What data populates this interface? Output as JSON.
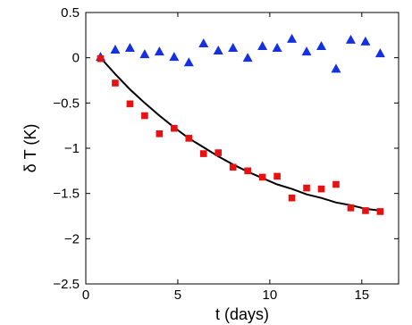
{
  "chart_data": {
    "type": "scatter",
    "xlabel": "t (days)",
    "ylabel": "δ T (K)",
    "xlim": [
      0,
      17
    ],
    "ylim": [
      -2.5,
      0.5
    ],
    "xticks": [
      0,
      5,
      10,
      15
    ],
    "xtick_labels": [
      "0",
      "5",
      "10",
      "15"
    ],
    "yticks": [
      0.5,
      0,
      -0.5,
      -1,
      -1.5,
      -2,
      -2.5
    ],
    "ytick_labels": [
      "0.5",
      "0",
      "−0.5",
      "−1",
      "−1.5",
      "−2",
      "−2.5"
    ],
    "grid": false,
    "series": [
      {
        "marker": "triangle",
        "color": "#1530e0",
        "x": [
          0.8,
          1.6,
          2.4,
          3.2,
          4.0,
          4.8,
          5.6,
          6.4,
          7.2,
          8.0,
          8.8,
          9.6,
          10.4,
          11.2,
          12.0,
          12.8,
          13.6,
          14.4,
          15.2,
          16.0
        ],
        "y": [
          0.01,
          0.09,
          0.11,
          0.04,
          0.07,
          0.01,
          -0.05,
          0.16,
          0.08,
          0.11,
          0.0,
          0.13,
          0.11,
          0.21,
          0.07,
          0.13,
          -0.12,
          0.2,
          0.18,
          0.05
        ]
      },
      {
        "marker": "square",
        "color": "#e81010",
        "x": [
          0.8,
          1.6,
          2.4,
          3.2,
          4.0,
          4.8,
          5.6,
          6.4,
          7.2,
          8.0,
          8.8,
          9.6,
          10.4,
          11.2,
          12.0,
          12.8,
          13.6,
          14.4,
          15.2,
          16.0
        ],
        "y": [
          -0.01,
          -0.28,
          -0.51,
          -0.64,
          -0.84,
          -0.78,
          -0.89,
          -1.06,
          -1.05,
          -1.21,
          -1.25,
          -1.32,
          -1.31,
          -1.55,
          -1.44,
          -1.45,
          -1.4,
          -1.66,
          -1.69,
          -1.7
        ]
      }
    ],
    "fit_curve": {
      "color": "#000000",
      "x": [
        0.8,
        1.6,
        2.4,
        3.2,
        4.0,
        4.8,
        5.6,
        6.4,
        7.2,
        8.0,
        8.8,
        9.6,
        10.4,
        11.2,
        12.0,
        12.8,
        13.6,
        14.4,
        15.2,
        16.0
      ],
      "y": [
        0.0,
        -0.18,
        -0.35,
        -0.5,
        -0.64,
        -0.77,
        -0.89,
        -0.99,
        -1.09,
        -1.18,
        -1.26,
        -1.33,
        -1.4,
        -1.45,
        -1.51,
        -1.55,
        -1.6,
        -1.63,
        -1.67,
        -1.69
      ]
    }
  }
}
